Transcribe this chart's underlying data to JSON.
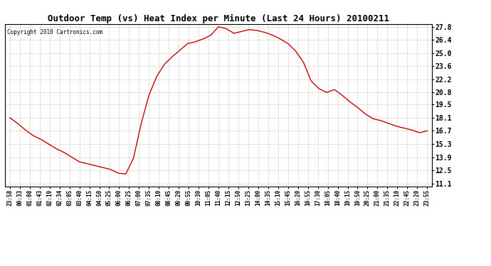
{
  "title": "Outdoor Temp (vs) Heat Index per Minute (Last 24 Hours) 20100211",
  "copyright": "Copyright 2010 Cartronics.com",
  "line_color": "#cc0000",
  "bg_color": "#ffffff",
  "grid_color": "#b0b0b0",
  "yticks": [
    11.1,
    12.5,
    13.9,
    15.3,
    16.7,
    18.1,
    19.5,
    20.8,
    22.2,
    23.6,
    25.0,
    26.4,
    27.8
  ],
  "ymin": 11.1,
  "ymax": 27.8,
  "xtick_labels": [
    "23:58",
    "00:33",
    "01:08",
    "01:43",
    "02:19",
    "02:34",
    "03:05",
    "03:40",
    "04:15",
    "04:50",
    "05:25",
    "06:00",
    "06:25",
    "07:00",
    "07:35",
    "08:10",
    "08:45",
    "09:20",
    "09:55",
    "10:30",
    "11:05",
    "11:40",
    "12:15",
    "12:50",
    "13:25",
    "14:00",
    "14:35",
    "15:10",
    "15:45",
    "16:20",
    "16:55",
    "17:30",
    "18:05",
    "18:40",
    "19:15",
    "19:50",
    "20:25",
    "21:00",
    "21:35",
    "22:10",
    "22:45",
    "23:20",
    "23:55"
  ],
  "curve_y": [
    18.1,
    17.5,
    16.8,
    16.2,
    15.8,
    15.3,
    14.8,
    14.4,
    13.9,
    13.4,
    13.2,
    13.0,
    12.8,
    12.6,
    12.2,
    12.1,
    13.8,
    17.5,
    20.5,
    22.5,
    23.8,
    24.6,
    25.3,
    26.0,
    26.2,
    26.5,
    26.9,
    27.8,
    27.6,
    27.1,
    27.3,
    27.5,
    27.4,
    27.2,
    26.9,
    26.5,
    26.0,
    25.2,
    24.0,
    22.0,
    21.2,
    20.8,
    21.1,
    20.5,
    19.8,
    19.2,
    18.5,
    18.0,
    17.8,
    17.5,
    17.2,
    17.0,
    16.8,
    16.5,
    16.7
  ]
}
